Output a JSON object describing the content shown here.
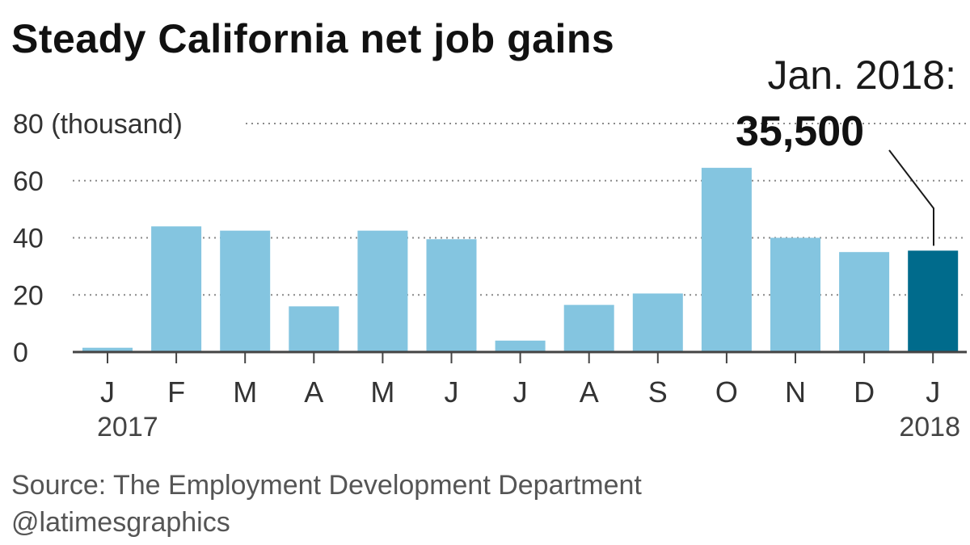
{
  "title": "Steady California net job gains",
  "source": "Source: The Employment Development Department",
  "credit": "@latimesgraphics",
  "colors": {
    "bar": "#84c5e0",
    "highlight": "#006b8c",
    "grid": "#8a8a8a",
    "axis": "#444444"
  },
  "chart_data": {
    "type": "bar",
    "categories": [
      "J",
      "F",
      "M",
      "A",
      "M",
      "J",
      "J",
      "A",
      "S",
      "O",
      "N",
      "D",
      "J"
    ],
    "values": [
      1.5,
      44,
      42.5,
      16,
      42.5,
      39.5,
      4,
      16.5,
      20.5,
      64.5,
      40,
      35,
      35.5
    ],
    "year_labels": [
      "2017",
      "",
      "",
      "",
      "",
      "",
      "",
      "",
      "",
      "",
      "",
      "",
      "2018"
    ],
    "ylim": [
      0,
      80
    ],
    "yticks": [
      0,
      20,
      40,
      60,
      80
    ],
    "ytick_labels": [
      "0",
      "20",
      "40",
      "60",
      "80 (thousand)"
    ],
    "grid": true,
    "highlight_index": 12,
    "annotation": {
      "label": "Jan. 2018:",
      "value": "35,500"
    }
  }
}
